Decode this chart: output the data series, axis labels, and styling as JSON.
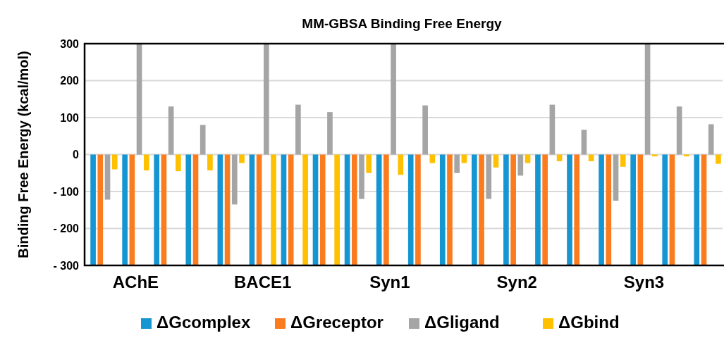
{
  "chart_data": {
    "type": "bar",
    "title": "MM-GBSA Binding Free Energy",
    "ylabel": "Binding Free Energy (kcal/mol)",
    "categories": [
      null,
      "AChE",
      null,
      null,
      null,
      "BACE1",
      null,
      null,
      null,
      "Syn1",
      null,
      null,
      null,
      "Syn2",
      null,
      null,
      null,
      "Syn3",
      null,
      null
    ],
    "series": [
      {
        "name": "ΔGcomplex",
        "color": "#1596d3",
        "values": [
          -300,
          -300,
          -300,
          -300,
          -300,
          -300,
          -300,
          -300,
          -300,
          -300,
          -300,
          -300,
          -300,
          -300,
          -300,
          -300,
          -300,
          -300,
          -300,
          -300
        ]
      },
      {
        "name": "ΔGreceptor",
        "color": "#fb7c1f",
        "values": [
          -300,
          -300,
          -300,
          -300,
          -300,
          -300,
          -300,
          -300,
          -300,
          -300,
          -300,
          -300,
          -300,
          -300,
          -300,
          -300,
          -300,
          -300,
          -300,
          -300
        ]
      },
      {
        "name": "ΔGligand",
        "color": "#a5a5a5",
        "values": [
          -122,
          300,
          130,
          80,
          -135,
          300,
          135,
          115,
          -120,
          300,
          133,
          -50,
          -120,
          -57,
          135,
          67,
          -125,
          300,
          130,
          82
        ]
      },
      {
        "name": "ΔGbind",
        "color": "#ffc000",
        "values": [
          -40,
          -43,
          -45,
          -43,
          -23,
          -300,
          -300,
          -300,
          -50,
          -55,
          -23,
          -23,
          -35,
          -23,
          -18,
          -18,
          -33,
          -5,
          -5,
          -25
        ]
      }
    ],
    "ylim": [
      -300,
      300
    ],
    "yticks": [
      {
        "value": -300,
        "label": "- 300"
      },
      {
        "value": -200,
        "label": "- 200"
      },
      {
        "value": -100,
        "label": "- 100"
      },
      0,
      100,
      200,
      300
    ],
    "grid": "y",
    "legend": "bottom"
  }
}
